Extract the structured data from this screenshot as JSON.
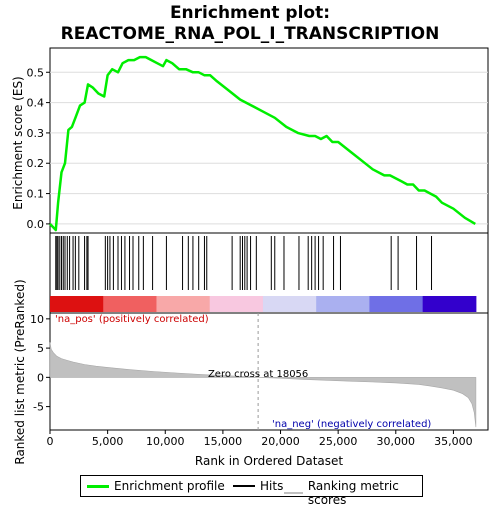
{
  "title_line1": "Enrichment plot:",
  "title_line2": "REACTOME_RNA_POL_I_TRANSCRIPTION",
  "colors": {
    "enrichment_line": "#00ee00",
    "ranking_fill": "#c0c0c0",
    "hits": "#000000",
    "pos_label": "#cc0000",
    "neg_label": "#0000aa",
    "zero_line": "#aaaaaa"
  },
  "legend": {
    "items": [
      {
        "label": "Enrichment profile",
        "color": "#00ee00"
      },
      {
        "label": "Hits",
        "color": "#000000"
      },
      {
        "label": "Ranking metric scores",
        "color": "#c0c0c0"
      }
    ]
  },
  "annotations": {
    "pos_label": "'na_pos' (positively correlated)",
    "neg_label": "'na_neg' (negatively correlated)",
    "zero_cross": "Zero cross at 18056"
  },
  "chart_data": [
    {
      "type": "line",
      "title": "",
      "ylabel": "Enrichment score (ES)",
      "xlim": [
        0,
        38000
      ],
      "ylim": [
        -0.03,
        0.58
      ],
      "yticks": [
        0.0,
        0.1,
        0.2,
        0.3,
        0.4,
        0.5
      ],
      "ytick_labels": [
        "0.0",
        "0.1",
        "0.2",
        "0.3",
        "0.4",
        "0.5"
      ],
      "grid": true,
      "series": [
        {
          "name": "Enrichment profile",
          "x": [
            0,
            500,
            700,
            1000,
            1300,
            1600,
            1900,
            2200,
            2600,
            3000,
            3300,
            3700,
            4200,
            4700,
            5000,
            5400,
            5900,
            6300,
            6800,
            7300,
            7800,
            8300,
            8800,
            9300,
            9800,
            10100,
            10600,
            11200,
            11800,
            12400,
            12900,
            13400,
            13900,
            14500,
            15500,
            16500,
            17500,
            18500,
            19500,
            20500,
            21500,
            22500,
            23000,
            23500,
            24000,
            24500,
            25000,
            26000,
            27000,
            28000,
            29000,
            29500,
            30000,
            30500,
            31000,
            31500,
            32000,
            32500,
            33000,
            33500,
            34000,
            35000,
            36000,
            36900
          ],
          "y": [
            0.0,
            -0.02,
            0.07,
            0.17,
            0.2,
            0.31,
            0.32,
            0.35,
            0.39,
            0.4,
            0.46,
            0.45,
            0.43,
            0.42,
            0.49,
            0.51,
            0.5,
            0.53,
            0.54,
            0.54,
            0.55,
            0.55,
            0.54,
            0.53,
            0.52,
            0.54,
            0.53,
            0.51,
            0.51,
            0.5,
            0.5,
            0.49,
            0.49,
            0.47,
            0.44,
            0.41,
            0.39,
            0.37,
            0.35,
            0.32,
            0.3,
            0.29,
            0.29,
            0.28,
            0.29,
            0.27,
            0.27,
            0.24,
            0.21,
            0.18,
            0.16,
            0.16,
            0.15,
            0.14,
            0.13,
            0.13,
            0.11,
            0.11,
            0.1,
            0.09,
            0.07,
            0.05,
            0.02,
            0.0
          ]
        }
      ]
    },
    {
      "type": "hits",
      "title": "",
      "hits": [
        500,
        600,
        700,
        850,
        1000,
        1150,
        1300,
        1500,
        1700,
        2000,
        2200,
        2500,
        3000,
        3200,
        3300,
        4800,
        5000,
        5200,
        5500,
        5900,
        6200,
        6500,
        6900,
        7200,
        7700,
        8100,
        8900,
        10100,
        11500,
        12000,
        12400,
        12900,
        13400,
        13600,
        15800,
        16500,
        16700,
        16900,
        17100,
        17400,
        17900,
        19200,
        19500,
        20300,
        21600,
        22400,
        22700,
        23000,
        23300,
        23700,
        24600,
        25200,
        29600,
        30200,
        31800,
        33100
      ],
      "heatmap_bands": [
        "#dd1111",
        "#f06060",
        "#f8a8a8",
        "#f8c8e0",
        "#d8d8f4",
        "#aab0f0",
        "#6f6fe6",
        "#3300cc"
      ]
    },
    {
      "type": "area",
      "title": "",
      "xlabel": "Rank in Ordered Dataset",
      "ylabel": "Ranked list metric (PreRanked)",
      "xlim": [
        0,
        38000
      ],
      "ylim": [
        -9,
        11
      ],
      "xticks": [
        0,
        5000,
        10000,
        15000,
        20000,
        25000,
        30000,
        35000
      ],
      "xtick_labels": [
        "0",
        "5,000",
        "10,000",
        "15,000",
        "20,000",
        "25,000",
        "30,000",
        "35,000"
      ],
      "yticks": [
        10,
        5,
        0,
        -5
      ],
      "ytick_labels": [
        "10",
        "5",
        "0",
        "-5"
      ],
      "zero_cross": 18056,
      "series": [
        {
          "name": "Ranking metric scores",
          "x": [
            0,
            100,
            300,
            600,
            1000,
            1500,
            2000,
            3000,
            4000,
            5000,
            7000,
            9000,
            11000,
            13000,
            15000,
            17000,
            18056,
            20000,
            22000,
            24000,
            26000,
            28000,
            30000,
            32000,
            33000,
            34000,
            35000,
            35800,
            36300,
            36600,
            36800,
            36950
          ],
          "y": [
            6.0,
            4.8,
            4.2,
            3.6,
            3.2,
            2.9,
            2.6,
            2.2,
            1.9,
            1.7,
            1.3,
            1.0,
            0.75,
            0.5,
            0.3,
            0.12,
            0.0,
            -0.15,
            -0.35,
            -0.5,
            -0.65,
            -0.8,
            -0.95,
            -1.2,
            -1.5,
            -1.8,
            -2.2,
            -2.8,
            -3.5,
            -4.5,
            -6.0,
            -8.5
          ]
        }
      ]
    }
  ]
}
